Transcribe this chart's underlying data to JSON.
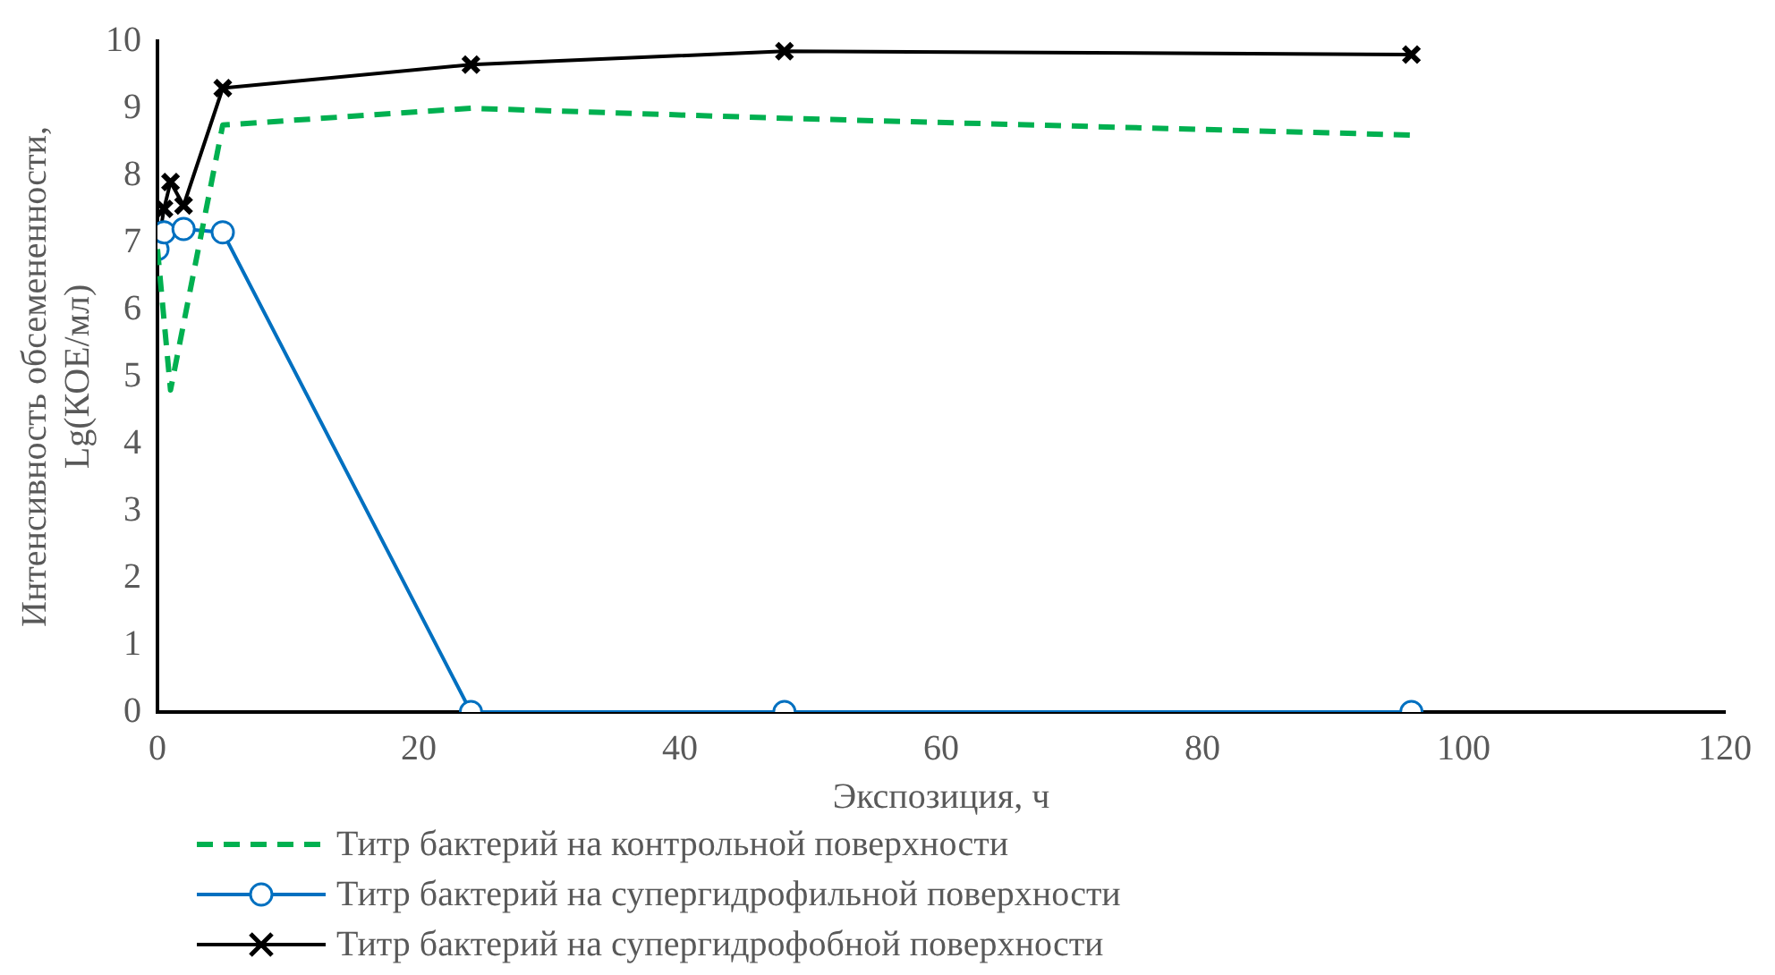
{
  "chart_data": {
    "type": "line",
    "xlabel": "Экспозиция, ч",
    "ylabel": "Интенсивность обсемененности, Lg(КОЕ/мл)",
    "xlim": [
      0,
      120
    ],
    "xticks": [
      0,
      20,
      40,
      60,
      80,
      100,
      120
    ],
    "ylim": [
      0,
      10
    ],
    "yticks": [
      0,
      1,
      2,
      3,
      4,
      5,
      6,
      7,
      8,
      9,
      10
    ],
    "grid": false,
    "legend": "bottom",
    "series": [
      {
        "name": "Титр бактерий на контрольной поверхности",
        "color": "#00b050",
        "marker": "none",
        "line_style": "dashed",
        "x": [
          0,
          1,
          5,
          24,
          48,
          96
        ],
        "values": [
          6.9,
          4.8,
          8.75,
          9.0,
          8.85,
          8.6
        ]
      },
      {
        "name": "Титр бактерий на супергидрофильной поверхности",
        "color": "#0070c0",
        "marker": "circle",
        "line_style": "solid",
        "x": [
          0,
          0.5,
          2,
          5,
          24,
          48,
          96
        ],
        "values": [
          6.9,
          7.15,
          7.2,
          7.15,
          0,
          0,
          0
        ]
      },
      {
        "name": "Титр бактерий на супергидрофобной поверхности",
        "color": "#000000",
        "marker": "cross",
        "line_style": "solid",
        "x": [
          0,
          0.5,
          1,
          2,
          5,
          24,
          48,
          96
        ],
        "values": [
          6.9,
          7.5,
          7.9,
          7.55,
          9.3,
          9.65,
          9.85,
          9.8
        ]
      }
    ]
  }
}
